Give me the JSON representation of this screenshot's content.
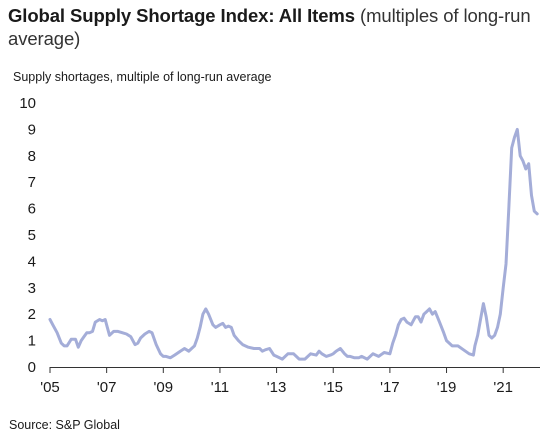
{
  "chart_data": {
    "type": "line",
    "title": "Global Supply Shortage Index: All Items",
    "subtitle": "(multiples of long-run average)",
    "ylabel": "Supply shortages, multiple of long-run average",
    "xlabel": "",
    "source": "Source: S&P Global",
    "ylim": [
      0,
      10
    ],
    "xlim": [
      2005.0,
      2022.3
    ],
    "y_ticks": [
      "0",
      "1",
      "2",
      "3",
      "4",
      "5",
      "6",
      "7",
      "8",
      "9",
      "10"
    ],
    "x_ticks": [
      {
        "label": "'05",
        "x": 2005
      },
      {
        "label": "'07",
        "x": 2007
      },
      {
        "label": "'09",
        "x": 2009
      },
      {
        "label": "'11",
        "x": 2011
      },
      {
        "label": "'13",
        "x": 2013
      },
      {
        "label": "'15",
        "x": 2015
      },
      {
        "label": "'17",
        "x": 2017
      },
      {
        "label": "'19",
        "x": 2019
      },
      {
        "label": "'21",
        "x": 2021
      }
    ],
    "grid": false,
    "series_color": "#a4add8",
    "series": [
      {
        "x": [
          2005.0,
          2005.1,
          2005.25,
          2005.4,
          2005.5,
          2005.6,
          2005.75,
          2005.9,
          2006.0,
          2006.1,
          2006.2,
          2006.3,
          2006.4,
          2006.5,
          2006.6,
          2006.75,
          2006.85,
          2006.95,
          2007.0,
          2007.1,
          2007.25,
          2007.4,
          2007.55,
          2007.7,
          2007.85,
          2008.0,
          2008.1,
          2008.2,
          2008.35,
          2008.5,
          2008.6,
          2008.75,
          2008.9,
          2009.0,
          2009.1,
          2009.25,
          2009.4,
          2009.6,
          2009.75,
          2009.9,
          2010.0,
          2010.1,
          2010.2,
          2010.3,
          2010.4,
          2010.5,
          2010.6,
          2010.75,
          2010.85,
          2011.0,
          2011.1,
          2011.2,
          2011.3,
          2011.4,
          2011.5,
          2011.65,
          2011.8,
          2012.0,
          2012.2,
          2012.4,
          2012.5,
          2012.6,
          2012.75,
          2012.9,
          2013.0,
          2013.2,
          2013.4,
          2013.6,
          2013.8,
          2014.0,
          2014.2,
          2014.4,
          2014.5,
          2014.6,
          2014.75,
          2014.9,
          2015.0,
          2015.1,
          2015.25,
          2015.4,
          2015.5,
          2015.6,
          2015.75,
          2015.9,
          2016.0,
          2016.2,
          2016.4,
          2016.6,
          2016.8,
          2017.0,
          2017.1,
          2017.2,
          2017.3,
          2017.4,
          2017.5,
          2017.6,
          2017.75,
          2017.9,
          2018.0,
          2018.1,
          2018.2,
          2018.3,
          2018.4,
          2018.5,
          2018.6,
          2018.75,
          2018.9,
          2019.0,
          2019.2,
          2019.4,
          2019.6,
          2019.8,
          2019.95,
          2020.0,
          2020.1,
          2020.2,
          2020.3,
          2020.4,
          2020.5,
          2020.6,
          2020.7,
          2020.8,
          2020.9,
          2021.0,
          2021.1,
          2021.2,
          2021.3,
          2021.4,
          2021.5,
          2021.6,
          2021.7,
          2021.8,
          2021.9,
          2022.0,
          2022.1,
          2022.2
        ],
        "values": [
          1.8,
          1.6,
          1.3,
          0.9,
          0.8,
          0.8,
          1.05,
          1.05,
          0.75,
          1.0,
          1.15,
          1.3,
          1.3,
          1.35,
          1.7,
          1.8,
          1.75,
          1.8,
          1.6,
          1.2,
          1.35,
          1.35,
          1.3,
          1.25,
          1.15,
          0.85,
          0.9,
          1.1,
          1.25,
          1.35,
          1.3,
          0.85,
          0.5,
          0.4,
          0.4,
          0.35,
          0.45,
          0.6,
          0.7,
          0.6,
          0.7,
          0.8,
          1.1,
          1.5,
          2.0,
          2.2,
          2.0,
          1.6,
          1.5,
          1.6,
          1.65,
          1.5,
          1.55,
          1.5,
          1.2,
          1.0,
          0.85,
          0.75,
          0.7,
          0.7,
          0.6,
          0.65,
          0.7,
          0.45,
          0.4,
          0.3,
          0.5,
          0.5,
          0.3,
          0.3,
          0.5,
          0.45,
          0.6,
          0.5,
          0.4,
          0.45,
          0.5,
          0.6,
          0.7,
          0.5,
          0.4,
          0.4,
          0.35,
          0.35,
          0.4,
          0.3,
          0.5,
          0.4,
          0.55,
          0.5,
          0.9,
          1.2,
          1.6,
          1.8,
          1.85,
          1.7,
          1.6,
          1.9,
          1.9,
          1.7,
          2.0,
          2.1,
          2.2,
          2.0,
          2.1,
          1.7,
          1.3,
          1.0,
          0.8,
          0.8,
          0.65,
          0.5,
          0.45,
          0.8,
          1.2,
          1.8,
          2.4,
          1.9,
          1.2,
          1.1,
          1.2,
          1.5,
          2.0,
          3.0,
          3.9,
          6.0,
          8.3,
          8.7,
          9.0,
          8.0,
          7.8,
          7.5,
          7.7,
          6.5,
          5.9,
          5.8
        ]
      }
    ]
  }
}
